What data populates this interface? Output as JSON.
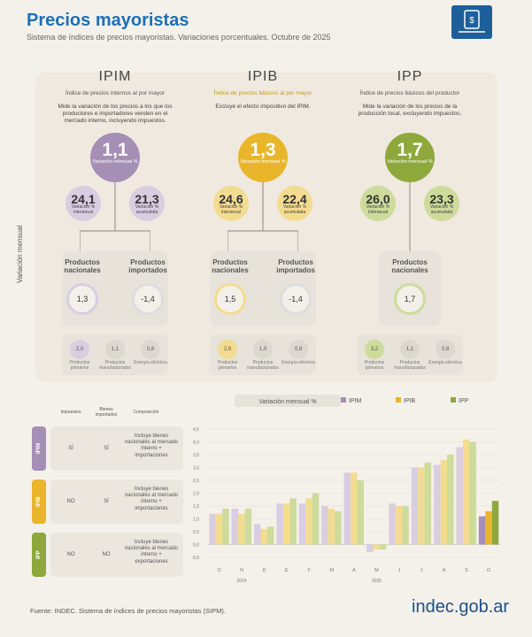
{
  "header": {
    "title": "Precios mayoristas",
    "subtitle": "Sistema de índices de precios mayoristas. Variaciones porcentuales. Octubre de 2025"
  },
  "side_label": "Variación mensual",
  "colors": {
    "ipim": "#a58fb5",
    "ipib": "#e9b52b",
    "ipp": "#8ea83c",
    "ipim_light": "#d9cde2",
    "ipib_light": "#f3dc8f",
    "ipp_light": "#cddb9b"
  },
  "indices": [
    {
      "name": "IPIM",
      "full": "Índice de precios internos al por mayor",
      "desc": "Mide la variación de los precios a los que los productores e importadores venden en el mercado interno, incluyendo impuestos.",
      "monthly": "1,1",
      "monthly_label": "Variación mensual %",
      "yoy": "24,1",
      "yoy_label": "Variación % interanual",
      "ytd": "21,3",
      "ytd_label": "Variación % acumulada",
      "nac_label": "Productos nacionales",
      "nac": "1,3",
      "imp_label": "Productos importados",
      "imp": "-1,4",
      "sub": [
        {
          "v": "2,0",
          "l": "Productos primarios"
        },
        {
          "v": "1,1",
          "l": "Productos manufacturados"
        },
        {
          "v": "0,8",
          "l": "Energía eléctrica"
        }
      ]
    },
    {
      "name": "IPIB",
      "full": "Índice de precios básicos al por mayor",
      "desc": "Excluye el efecto impositivo del IPIM.",
      "monthly": "1,3",
      "monthly_label": "Variación mensual %",
      "yoy": "24,6",
      "yoy_label": "Variación % interanual",
      "ytd": "22,4",
      "ytd_label": "Variación % acumulada",
      "nac_label": "Productos nacionales",
      "nac": "1,5",
      "imp_label": "Productos importados",
      "imp": "-1,4",
      "sub": [
        {
          "v": "2,8",
          "l": "Productos primarios"
        },
        {
          "v": "1,0",
          "l": "Productos manufacturados"
        },
        {
          "v": "0,8",
          "l": "Energía eléctrica"
        }
      ]
    },
    {
      "name": "IPP",
      "full": "Índice de precios básicos del productor",
      "desc": "Mide la variación de los precios de la producción local, excluyendo impuestos.",
      "monthly": "1,7",
      "monthly_label": "Variación mensual %",
      "yoy": "26,0",
      "yoy_label": "Variación % interanual",
      "ytd": "23,3",
      "ytd_label": "Variación % acumulada",
      "nac_label": "Productos nacionales",
      "nac": "1,7",
      "sub": [
        {
          "v": "3,2",
          "l": "Productos primarios"
        },
        {
          "v": "1,1",
          "l": "Productos manufacturados"
        },
        {
          "v": "0,8",
          "l": "Energía eléctrica"
        }
      ]
    }
  ],
  "table": {
    "headers": [
      "Impuestos",
      "Bienes importados",
      "Composición"
    ],
    "rows": [
      {
        "tag": "IPIM",
        "imp": "SÍ",
        "bienes": "SÍ",
        "comp": "Incluye bienes nacionales al mercado interno + importaciones"
      },
      {
        "tag": "IPIB",
        "imp": "NO",
        "bienes": "SÍ",
        "comp": "Incluye bienes nacionales al mercado interno + importaciones"
      },
      {
        "tag": "IPP",
        "imp": "NO",
        "bienes": "NO",
        "comp": "Incluye bienes nacionales al mercado interno + exportaciones"
      }
    ]
  },
  "chart_data": {
    "type": "bar",
    "title": "Variación mensual %",
    "categories": [
      "O",
      "N",
      "D",
      "E",
      "F",
      "M",
      "A",
      "M",
      "J",
      "J",
      "A",
      "S",
      "O"
    ],
    "year_labels": [
      "2024",
      "2025"
    ],
    "ylim": [
      -0.5,
      4.5
    ],
    "yticks": [
      "-0,5",
      "0,0",
      "0,5",
      "1,0",
      "1,5",
      "2,0",
      "2,5",
      "3,0",
      "3,5",
      "4,0",
      "4,5"
    ],
    "series": [
      {
        "name": "IPIM",
        "values": [
          1.2,
          1.4,
          0.8,
          1.6,
          1.6,
          1.5,
          2.8,
          -0.3,
          1.6,
          3.0,
          3.1,
          3.8,
          1.1
        ]
      },
      {
        "name": "IPIB",
        "values": [
          1.2,
          1.2,
          0.6,
          1.6,
          1.8,
          1.4,
          2.8,
          -0.2,
          1.5,
          3.0,
          3.3,
          4.1,
          1.3
        ]
      },
      {
        "name": "IPP",
        "values": [
          1.4,
          1.4,
          0.7,
          1.8,
          2.0,
          1.3,
          2.5,
          -0.2,
          1.5,
          3.2,
          3.5,
          4.0,
          1.7
        ]
      }
    ]
  },
  "footer": "Fuente: INDEC. Sistema de índices de precios mayoristas (SIPM).",
  "brand": "indec.gob.ar"
}
